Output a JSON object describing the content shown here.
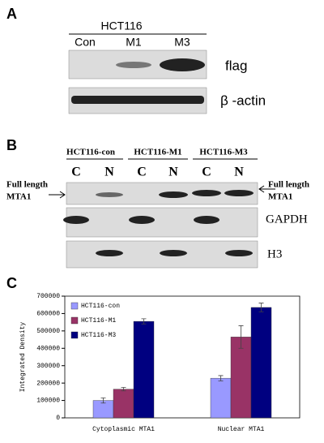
{
  "panel_a": {
    "label": "A",
    "header": "HCT116",
    "lanes": [
      "Con",
      "M1",
      "M3"
    ],
    "rows": [
      "flag",
      "β -actin"
    ]
  },
  "panel_b": {
    "label": "B",
    "groups": [
      "HCT116-con",
      "HCT116-M1",
      "HCT116-M3"
    ],
    "fractions": [
      "C",
      "N",
      "C",
      "N",
      "C",
      "N"
    ],
    "left_label": [
      "Full length",
      "MTA1"
    ],
    "right_label": [
      "Full length",
      "MTA1"
    ],
    "rows": [
      "GAPDH",
      "H3"
    ]
  },
  "panel_c": {
    "label": "C"
  },
  "chart_data": {
    "type": "bar",
    "y_label": "Integrated Density",
    "categories": [
      "Cytoplasmic MTA1",
      "Nuclear MTA1"
    ],
    "series": [
      {
        "name": "HCT116-con",
        "color": "#9999ff",
        "values": [
          100000,
          228000
        ],
        "errors": [
          15000,
          15000
        ]
      },
      {
        "name": "HCT116-M1",
        "color": "#993366",
        "values": [
          165000,
          465000
        ],
        "errors": [
          10000,
          65000
        ]
      },
      {
        "name": "HCT116-M3",
        "color": "#000080",
        "values": [
          555000,
          635000
        ],
        "errors": [
          15000,
          25000
        ]
      }
    ],
    "ylim": [
      0,
      700000
    ],
    "yticks": [
      0,
      100000,
      200000,
      300000,
      400000,
      500000,
      600000,
      700000
    ],
    "legend": "upper-left"
  }
}
